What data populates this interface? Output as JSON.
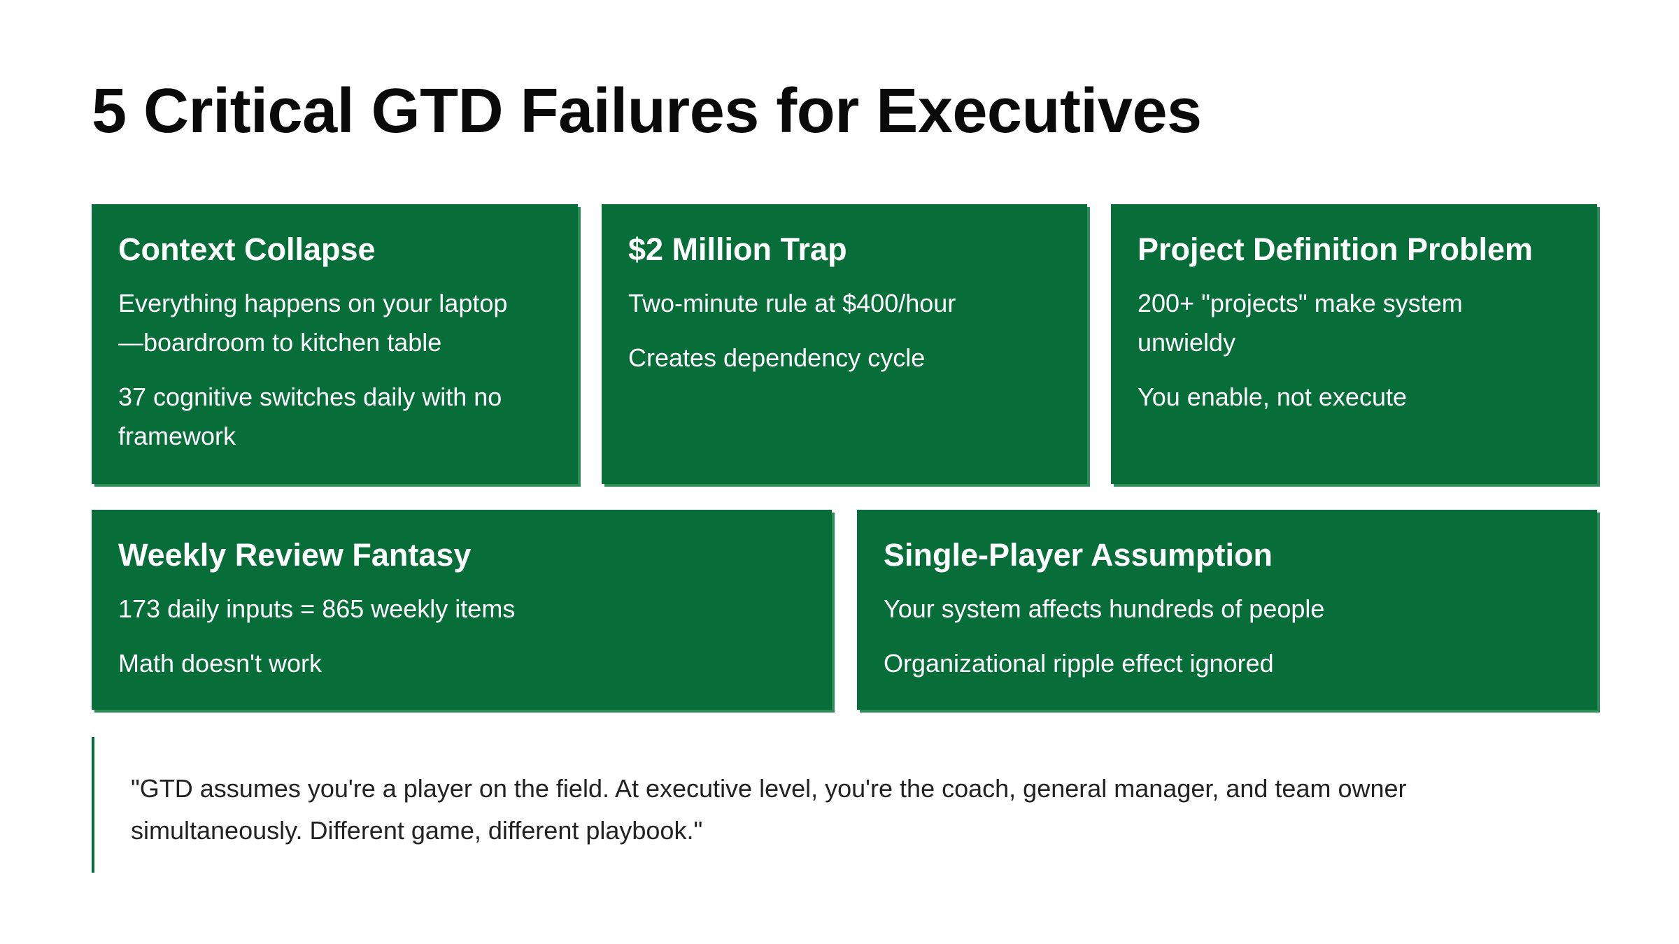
{
  "title": "5 Critical GTD Failures for Executives",
  "colors": {
    "card_bg": "#076e3a",
    "card_shadow": "#2e8c57",
    "accent_bar": "#076e3a"
  },
  "cards": [
    {
      "heading": "Context Collapse",
      "points": [
        "Everything happens on your laptop —boardroom to kitchen table",
        "37 cognitive switches daily with no framework"
      ]
    },
    {
      "heading": "$2 Million Trap",
      "points": [
        "Two-minute rule at $400/hour",
        "Creates dependency cycle"
      ]
    },
    {
      "heading": "Project Definition Problem",
      "points": [
        "200+ \"projects\" make system unwieldy",
        "You enable, not execute"
      ]
    },
    {
      "heading": "Weekly Review Fantasy",
      "points": [
        "173 daily inputs = 865 weekly items",
        "Math doesn't work"
      ]
    },
    {
      "heading": "Single-Player Assumption",
      "points": [
        "Your system affects hundreds of people",
        "Organizational ripple effect ignored"
      ]
    }
  ],
  "quote": "\"GTD assumes you're a player on the field. At executive level, you're the coach, general manager, and team owner simultaneously. Different game, different playbook.\""
}
